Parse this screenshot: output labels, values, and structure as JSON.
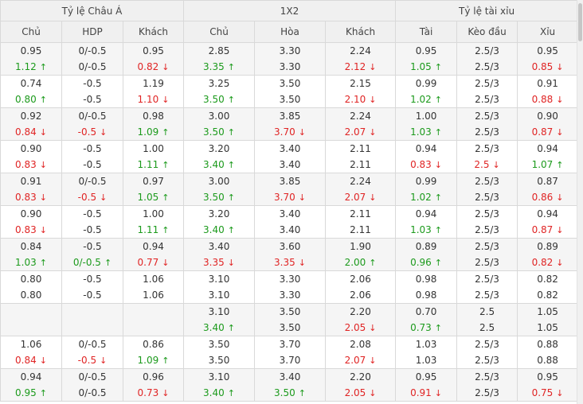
{
  "headers": {
    "groups": [
      "Tỷ lệ Châu Á",
      "1X2",
      "Tỷ lệ tài xỉu"
    ],
    "columns": [
      "Chủ",
      "HDP",
      "Khách",
      "Chủ",
      "Hòa",
      "Khách",
      "Tài",
      "Kèo đầu",
      "Xỉu"
    ]
  },
  "rows": [
    {
      "cells": [
        {
          "top": "0.95",
          "bottom": "1.12",
          "dir": "up"
        },
        {
          "top": "0/-0.5",
          "bottom": "0/-0.5",
          "dir": ""
        },
        {
          "top": "0.95",
          "bottom": "0.82",
          "dir": "down"
        },
        {
          "top": "2.85",
          "bottom": "3.35",
          "dir": "up"
        },
        {
          "top": "3.30",
          "bottom": "3.30",
          "dir": ""
        },
        {
          "top": "2.24",
          "bottom": "2.12",
          "dir": "down"
        },
        {
          "top": "0.95",
          "bottom": "1.05",
          "dir": "up"
        },
        {
          "top": "2.5/3",
          "bottom": "2.5/3",
          "dir": ""
        },
        {
          "top": "0.95",
          "bottom": "0.85",
          "dir": "down"
        }
      ]
    },
    {
      "cells": [
        {
          "top": "0.74",
          "bottom": "0.80",
          "dir": "up"
        },
        {
          "top": "-0.5",
          "bottom": "-0.5",
          "dir": ""
        },
        {
          "top": "1.19",
          "bottom": "1.10",
          "dir": "down"
        },
        {
          "top": "3.25",
          "bottom": "3.50",
          "dir": "up"
        },
        {
          "top": "3.50",
          "bottom": "3.50",
          "dir": ""
        },
        {
          "top": "2.15",
          "bottom": "2.10",
          "dir": "down"
        },
        {
          "top": "0.99",
          "bottom": "1.02",
          "dir": "up"
        },
        {
          "top": "2.5/3",
          "bottom": "2.5/3",
          "dir": ""
        },
        {
          "top": "0.91",
          "bottom": "0.88",
          "dir": "down"
        }
      ]
    },
    {
      "cells": [
        {
          "top": "0.92",
          "bottom": "0.84",
          "dir": "down"
        },
        {
          "top": "0/-0.5",
          "bottom": "-0.5",
          "dir": "down"
        },
        {
          "top": "0.98",
          "bottom": "1.09",
          "dir": "up"
        },
        {
          "top": "3.00",
          "bottom": "3.50",
          "dir": "up"
        },
        {
          "top": "3.85",
          "bottom": "3.70",
          "dir": "down"
        },
        {
          "top": "2.24",
          "bottom": "2.07",
          "dir": "down"
        },
        {
          "top": "1.00",
          "bottom": "1.03",
          "dir": "up"
        },
        {
          "top": "2.5/3",
          "bottom": "2.5/3",
          "dir": ""
        },
        {
          "top": "0.90",
          "bottom": "0.87",
          "dir": "down"
        }
      ]
    },
    {
      "cells": [
        {
          "top": "0.90",
          "bottom": "0.83",
          "dir": "down"
        },
        {
          "top": "-0.5",
          "bottom": "-0.5",
          "dir": ""
        },
        {
          "top": "1.00",
          "bottom": "1.11",
          "dir": "up"
        },
        {
          "top": "3.20",
          "bottom": "3.40",
          "dir": "up"
        },
        {
          "top": "3.40",
          "bottom": "3.40",
          "dir": ""
        },
        {
          "top": "2.11",
          "bottom": "2.11",
          "dir": ""
        },
        {
          "top": "0.94",
          "bottom": "0.83",
          "dir": "down"
        },
        {
          "top": "2.5/3",
          "bottom": "2.5",
          "dir": "down"
        },
        {
          "top": "0.94",
          "bottom": "1.07",
          "dir": "up"
        }
      ]
    },
    {
      "cells": [
        {
          "top": "0.91",
          "bottom": "0.83",
          "dir": "down"
        },
        {
          "top": "0/-0.5",
          "bottom": "-0.5",
          "dir": "down"
        },
        {
          "top": "0.97",
          "bottom": "1.05",
          "dir": "up"
        },
        {
          "top": "3.00",
          "bottom": "3.50",
          "dir": "up"
        },
        {
          "top": "3.85",
          "bottom": "3.70",
          "dir": "down"
        },
        {
          "top": "2.24",
          "bottom": "2.07",
          "dir": "down"
        },
        {
          "top": "0.99",
          "bottom": "1.02",
          "dir": "up"
        },
        {
          "top": "2.5/3",
          "bottom": "2.5/3",
          "dir": ""
        },
        {
          "top": "0.87",
          "bottom": "0.86",
          "dir": "down"
        }
      ]
    },
    {
      "cells": [
        {
          "top": "0.90",
          "bottom": "0.83",
          "dir": "down"
        },
        {
          "top": "-0.5",
          "bottom": "-0.5",
          "dir": ""
        },
        {
          "top": "1.00",
          "bottom": "1.11",
          "dir": "up"
        },
        {
          "top": "3.20",
          "bottom": "3.40",
          "dir": "up"
        },
        {
          "top": "3.40",
          "bottom": "3.40",
          "dir": ""
        },
        {
          "top": "2.11",
          "bottom": "2.11",
          "dir": ""
        },
        {
          "top": "0.94",
          "bottom": "1.03",
          "dir": "up"
        },
        {
          "top": "2.5/3",
          "bottom": "2.5/3",
          "dir": ""
        },
        {
          "top": "0.94",
          "bottom": "0.87",
          "dir": "down"
        }
      ]
    },
    {
      "cells": [
        {
          "top": "0.84",
          "bottom": "1.03",
          "dir": "up"
        },
        {
          "top": "-0.5",
          "bottom": "0/-0.5",
          "dir": "up"
        },
        {
          "top": "0.94",
          "bottom": "0.77",
          "dir": "down"
        },
        {
          "top": "3.40",
          "bottom": "3.35",
          "dir": "down"
        },
        {
          "top": "3.60",
          "bottom": "3.35",
          "dir": "down"
        },
        {
          "top": "1.90",
          "bottom": "2.00",
          "dir": "up"
        },
        {
          "top": "0.89",
          "bottom": "0.96",
          "dir": "up"
        },
        {
          "top": "2.5/3",
          "bottom": "2.5/3",
          "dir": ""
        },
        {
          "top": "0.89",
          "bottom": "0.82",
          "dir": "down"
        }
      ]
    },
    {
      "cells": [
        {
          "top": "0.80",
          "bottom": "0.80",
          "dir": ""
        },
        {
          "top": "-0.5",
          "bottom": "-0.5",
          "dir": ""
        },
        {
          "top": "1.06",
          "bottom": "1.06",
          "dir": ""
        },
        {
          "top": "3.10",
          "bottom": "3.10",
          "dir": ""
        },
        {
          "top": "3.30",
          "bottom": "3.30",
          "dir": ""
        },
        {
          "top": "2.06",
          "bottom": "2.06",
          "dir": ""
        },
        {
          "top": "0.98",
          "bottom": "0.98",
          "dir": ""
        },
        {
          "top": "2.5/3",
          "bottom": "2.5/3",
          "dir": ""
        },
        {
          "top": "0.82",
          "bottom": "0.82",
          "dir": ""
        }
      ]
    },
    {
      "cells": [
        {
          "top": "",
          "bottom": "",
          "dir": ""
        },
        {
          "top": "",
          "bottom": "",
          "dir": ""
        },
        {
          "top": "",
          "bottom": "",
          "dir": ""
        },
        {
          "top": "3.10",
          "bottom": "3.40",
          "dir": "up"
        },
        {
          "top": "3.50",
          "bottom": "3.50",
          "dir": ""
        },
        {
          "top": "2.20",
          "bottom": "2.05",
          "dir": "down"
        },
        {
          "top": "0.70",
          "bottom": "0.73",
          "dir": "up"
        },
        {
          "top": "2.5",
          "bottom": "2.5",
          "dir": ""
        },
        {
          "top": "1.05",
          "bottom": "1.05",
          "dir": ""
        }
      ]
    },
    {
      "cells": [
        {
          "top": "1.06",
          "bottom": "0.84",
          "dir": "down"
        },
        {
          "top": "0/-0.5",
          "bottom": "-0.5",
          "dir": "down"
        },
        {
          "top": "0.86",
          "bottom": "1.09",
          "dir": "up"
        },
        {
          "top": "3.50",
          "bottom": "3.50",
          "dir": ""
        },
        {
          "top": "3.70",
          "bottom": "3.70",
          "dir": ""
        },
        {
          "top": "2.08",
          "bottom": "2.07",
          "dir": "down"
        },
        {
          "top": "1.03",
          "bottom": "1.03",
          "dir": ""
        },
        {
          "top": "2.5/3",
          "bottom": "2.5/3",
          "dir": ""
        },
        {
          "top": "0.88",
          "bottom": "0.88",
          "dir": ""
        }
      ]
    },
    {
      "cells": [
        {
          "top": "0.94",
          "bottom": "0.95",
          "dir": "up"
        },
        {
          "top": "0/-0.5",
          "bottom": "0/-0.5",
          "dir": ""
        },
        {
          "top": "0.96",
          "bottom": "0.73",
          "dir": "down"
        },
        {
          "top": "3.10",
          "bottom": "3.40",
          "dir": "up"
        },
        {
          "top": "3.40",
          "bottom": "3.50",
          "dir": "up"
        },
        {
          "top": "2.20",
          "bottom": "2.05",
          "dir": "down"
        },
        {
          "top": "0.95",
          "bottom": "0.91",
          "dir": "down"
        },
        {
          "top": "2.5/3",
          "bottom": "2.5/3",
          "dir": ""
        },
        {
          "top": "0.95",
          "bottom": "0.75",
          "dir": "down"
        }
      ]
    }
  ],
  "arrows": {
    "up": "↑",
    "down": "↓"
  }
}
